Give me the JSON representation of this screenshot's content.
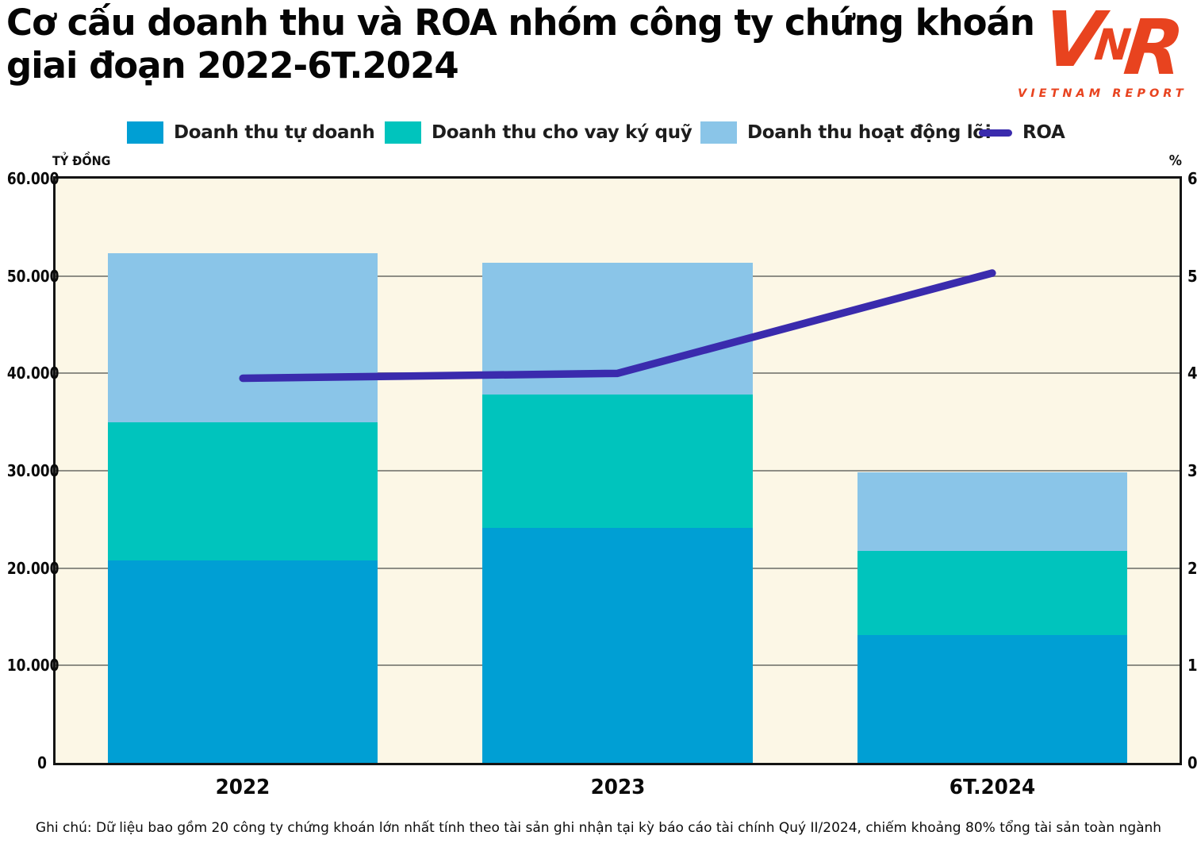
{
  "header": {
    "title": "Cơ cấu doanh thu và ROA nhóm công ty chứng khoán\ngiai đoạn 2022-6T.2024"
  },
  "logo": {
    "letters": [
      "V",
      "N",
      "R"
    ],
    "wordmark": "VIETNAM REPORT",
    "color": "#E8431F"
  },
  "footer": {
    "note": "Ghi chú: Dữ liệu bao gồm 20 công ty chứng khoán lớn nhất tính theo tài sản ghi nhận tại kỳ báo cáo tài chính Quý II/2024, chiếm khoảng 80% tổng tài sản toàn ngành"
  },
  "chart_data": {
    "type": "bar",
    "subtype": "stacked-bar-with-line",
    "categories": [
      "2022",
      "2023",
      "6T.2024"
    ],
    "series": [
      {
        "name": "Doanh thu tự doanh",
        "color": "#009FD4",
        "values": [
          20800,
          24100,
          13100
        ]
      },
      {
        "name": "Doanh thu cho vay ký quỹ",
        "color": "#00C4BD",
        "values": [
          14200,
          13700,
          8700
        ]
      },
      {
        "name": "Doanh thu hoạt động lõi",
        "color": "#8AC5E8",
        "values": [
          17300,
          13600,
          8000
        ]
      }
    ],
    "totals": [
      52300,
      51400,
      29800
    ],
    "line": {
      "name": "ROA",
      "color": "#3A2BAD",
      "values": [
        3.95,
        4.0,
        5.03
      ],
      "axis": "right"
    },
    "left_axis": {
      "title": "TỶ ĐỒNG",
      "min": 0,
      "max": 60000,
      "ticks": [
        "60.000",
        "50.000",
        "40.000",
        "30.000",
        "20.000",
        "10.000",
        "0"
      ]
    },
    "right_axis": {
      "title": "%",
      "min": 0,
      "max": 6,
      "ticks": [
        "6",
        "5",
        "4",
        "3",
        "2",
        "1",
        "0"
      ]
    },
    "plot_bg": "#FCF7E6",
    "grid": "horizontal",
    "legend_position": "top"
  }
}
